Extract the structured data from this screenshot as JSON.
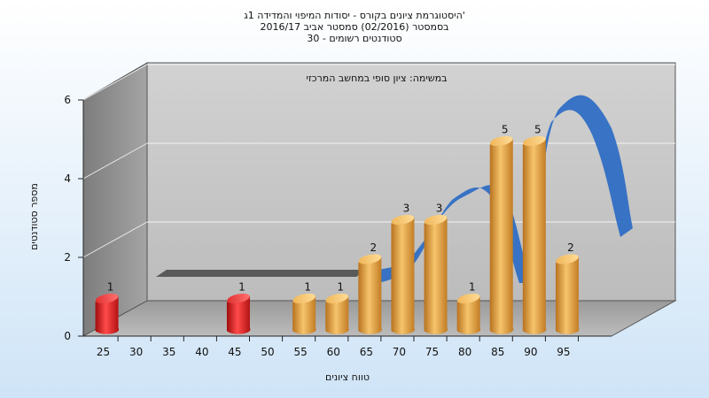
{
  "title_lines": [
    "היסטוגרמת ציונים בקורס - יסודות המיפוי והמדידה 1ג'",
    "בסמסטר  (02/2016)  סמסטר אביב 2016/17",
    "סטודנטים רשומים - 30"
  ],
  "chart_data": {
    "type": "bar",
    "annotation": "במשימה: ציון סופי במחשב המרכזי",
    "xlabel": "טווח ציונים",
    "ylabel": "מספר סטודנטים",
    "ylim": [
      0,
      6
    ],
    "yticks": [
      "0",
      "2",
      "4",
      "6"
    ],
    "categories": [
      "25",
      "30",
      "35",
      "40",
      "45",
      "50",
      "55",
      "60",
      "65",
      "70",
      "75",
      "80",
      "85",
      "90",
      "95"
    ],
    "values": [
      1,
      null,
      null,
      null,
      1,
      null,
      1,
      1,
      2,
      3,
      3,
      1,
      5,
      5,
      2
    ],
    "value_labels": [
      "1",
      "",
      "",
      "",
      "1",
      "",
      "1",
      "1",
      "2",
      "3",
      "3",
      "1",
      "5",
      "5",
      "2"
    ],
    "grid": true,
    "colors": {
      "failing_bar": "#e02020",
      "passing_bar": "#e8a23c",
      "curve": "#2f6ec4",
      "back_wall": "#c6c6c6",
      "side_wall": "#8e8e8e",
      "floor": "#a9a9a9"
    }
  }
}
